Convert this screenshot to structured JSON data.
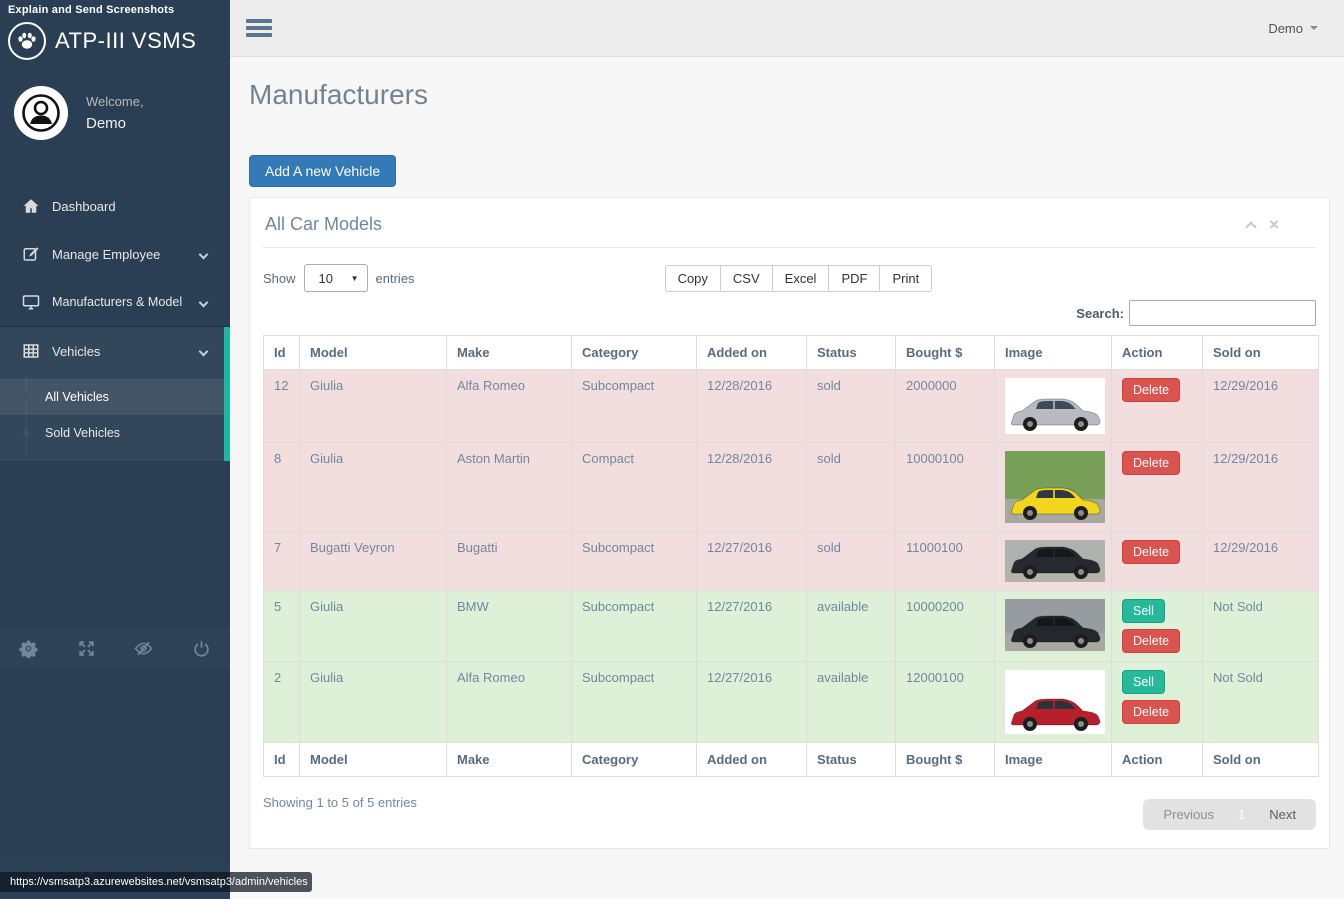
{
  "extension_overlay": {
    "label": "Explain and Send Screenshots"
  },
  "sidebar": {
    "brand": "ATP-III VSMS",
    "welcome_label": "Welcome,",
    "username": "Demo",
    "items": [
      {
        "label": "Dashboard",
        "icon": "home-icon",
        "expandable": false
      },
      {
        "label": "Manage Employee",
        "icon": "edit-icon",
        "expandable": true
      },
      {
        "label": "Manufacturers & Model",
        "icon": "monitor-icon",
        "expandable": true
      },
      {
        "label": "Vehicles",
        "icon": "table-grid-icon",
        "expandable": true,
        "active": true,
        "children": [
          {
            "label": "All Vehicles",
            "current": true
          },
          {
            "label": "Sold Vehicles",
            "current": false
          }
        ]
      }
    ],
    "footer_icons": [
      "gear-icon",
      "fullscreen-icon",
      "eye-slash-icon",
      "power-icon"
    ]
  },
  "topbar": {
    "user_menu": "Demo"
  },
  "statusbar": {
    "url": "https://vsmsatp3.azurewebsites.net/vsmsatp3/admin/vehicles"
  },
  "page": {
    "title": "Manufacturers",
    "add_button": "Add A new Vehicle"
  },
  "panel": {
    "title": "All Car Models"
  },
  "datatable": {
    "show_label": "Show",
    "page_length": "10",
    "entries_label": "entries",
    "export_buttons": [
      "Copy",
      "CSV",
      "Excel",
      "PDF",
      "Print"
    ],
    "search_label": "Search:",
    "search_value": "",
    "columns": [
      "Id",
      "Model",
      "Make",
      "Category",
      "Added on",
      "Status",
      "Bought $",
      "Image",
      "Action",
      "Sold on"
    ],
    "rows": [
      {
        "id": "12",
        "model": "Giulia",
        "make": "Alfa Romeo",
        "category": "Subcompact",
        "added_on": "12/28/2016",
        "status": "sold",
        "bought": "2000000",
        "actions": [
          "Delete"
        ],
        "sold_on": "12/29/2016",
        "row_state": "sold",
        "image": {
          "name": "silver-estate-car-photo",
          "car_color": "#b8bcc2",
          "window_color": "#3e4a55",
          "bg_top": "#ffffff",
          "bg_bottom": "#ffffff"
        }
      },
      {
        "id": "8",
        "model": "Giulia",
        "make": "Aston Martin",
        "category": "Compact",
        "added_on": "12/28/2016",
        "status": "sold",
        "bought": "10000100",
        "actions": [
          "Delete"
        ],
        "sold_on": "12/29/2016",
        "row_state": "sold",
        "image": {
          "name": "yellow-sports-car-photo",
          "car_color": "#f2d51d",
          "window_color": "#2e3a42",
          "bg_top": "#79a058",
          "bg_bottom": "#a8a89e"
        }
      },
      {
        "id": "7",
        "model": "Bugatti Veyron",
        "make": "Bugatti",
        "category": "Subcompact",
        "added_on": "12/27/2016",
        "status": "sold",
        "bought": "11000100",
        "actions": [
          "Delete"
        ],
        "sold_on": "12/29/2016",
        "row_state": "sold",
        "image": {
          "name": "black-sports-car-photo",
          "car_color": "#26292d",
          "window_color": "#15181b",
          "bg_top": "#aeb2ae",
          "bg_bottom": "#b5b2a9"
        }
      },
      {
        "id": "5",
        "model": "Giulia",
        "make": "BMW",
        "category": "Subcompact",
        "added_on": "12/27/2016",
        "status": "available",
        "bought": "10000200",
        "actions": [
          "Sell",
          "Delete"
        ],
        "sold_on": "Not Sold",
        "row_state": "available",
        "image": {
          "name": "black-sports-car-photo",
          "car_color": "#24272b",
          "window_color": "#14171a",
          "bg_top": "#969c9f",
          "bg_bottom": "#a9a9a1"
        }
      },
      {
        "id": "2",
        "model": "Giulia",
        "make": "Alfa Romeo",
        "category": "Subcompact",
        "added_on": "12/27/2016",
        "status": "available",
        "bought": "12000100",
        "actions": [
          "Sell",
          "Delete"
        ],
        "sold_on": "Not Sold",
        "row_state": "available",
        "image": {
          "name": "red-sedan-car-photo",
          "car_color": "#b5202b",
          "window_color": "#2c3238",
          "bg_top": "#ffffff",
          "bg_bottom": "#ffffff"
        }
      }
    ],
    "info": "Showing 1 to 5 of 5 entries",
    "pagination": {
      "previous": "Previous",
      "current": "1",
      "next": "Next"
    }
  },
  "colors": {
    "sidebar_bg": "#2A3F54",
    "accent_teal": "#1ABB9C",
    "primary_blue": "#337AB7",
    "danger_red": "#D9534F",
    "success_green": "#26B99A",
    "row_sold_bg": "#F2DEDE",
    "row_available_bg": "#DFF0D8",
    "topbar_bg": "#EDEDED",
    "panel_border": "#E6E9ED",
    "text_muted": "#73879C"
  }
}
